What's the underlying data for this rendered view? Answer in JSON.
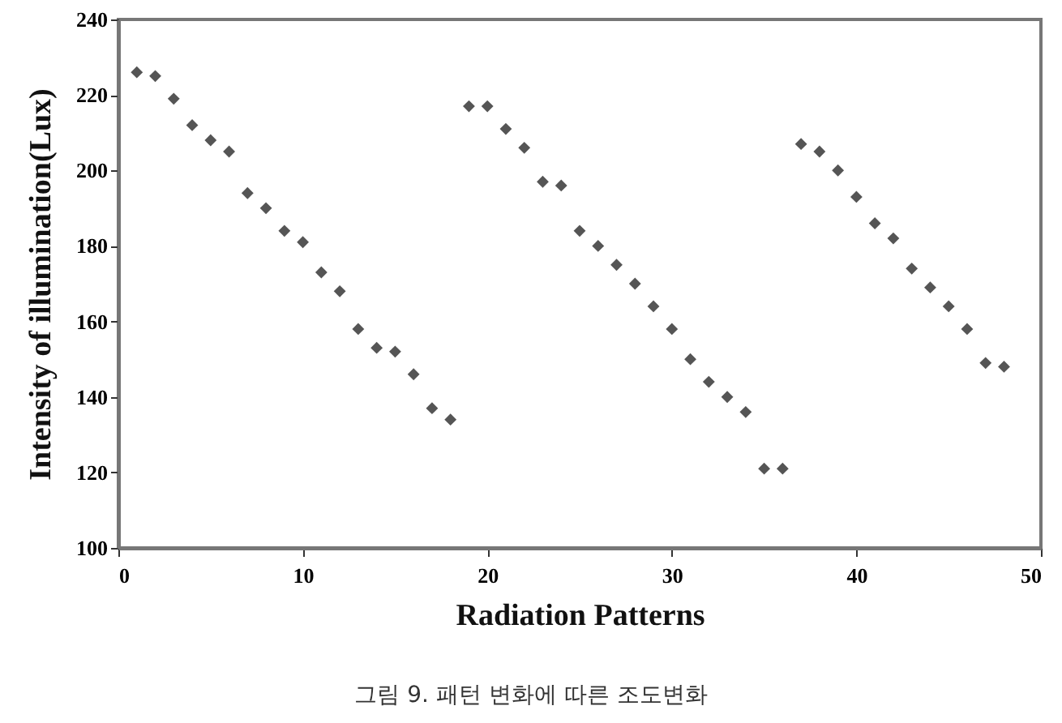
{
  "chart_data": {
    "type": "scatter",
    "xlabel": "Radiation Patterns",
    "ylabel": "Intensity of illumination(Lux)",
    "annotations": [
      "그림 9. 패턴 변화에 따른 조도변화"
    ],
    "x": [
      1,
      2,
      3,
      4,
      5,
      6,
      7,
      8,
      9,
      10,
      11,
      12,
      13,
      14,
      15,
      16,
      17,
      18,
      19,
      20,
      21,
      22,
      23,
      24,
      25,
      26,
      27,
      28,
      29,
      30,
      31,
      32,
      33,
      34,
      35,
      36,
      37,
      38,
      39,
      40,
      41,
      42,
      43,
      44,
      45,
      46,
      47,
      48
    ],
    "series": [
      {
        "color": "#555555",
        "values": [
          226,
          225,
          219,
          212,
          208,
          205,
          194,
          190,
          184,
          181,
          173,
          168,
          158,
          153,
          152,
          146,
          137,
          134,
          217,
          217,
          211,
          206,
          197,
          196,
          184,
          180,
          175,
          170,
          164,
          158,
          150,
          144,
          140,
          136,
          121,
          121,
          207,
          205,
          200,
          193,
          186,
          182,
          174,
          169,
          164,
          158,
          149,
          148
        ]
      }
    ],
    "xlim": [
      0,
      50
    ],
    "xticks": [
      0,
      10,
      20,
      30,
      40,
      50
    ],
    "ylim": [
      100,
      240
    ],
    "yticks": [
      100,
      120,
      140,
      160,
      180,
      200,
      220,
      240
    ],
    "grid": false,
    "marker": "diamond"
  }
}
